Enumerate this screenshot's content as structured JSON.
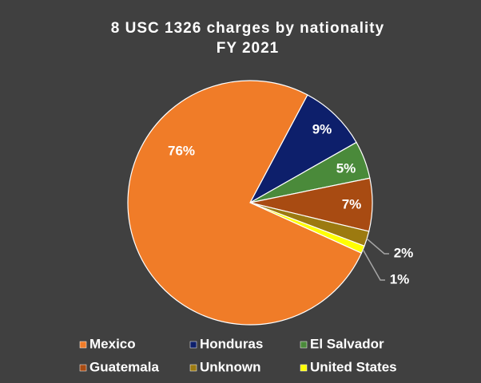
{
  "chart_data": {
    "type": "pie",
    "title": "8 USC 1326 charges by nationality",
    "subtitle": "FY 2021",
    "categories": [
      "Honduras",
      "El Salvador",
      "Guatemala",
      "Unknown",
      "United States",
      "Mexico"
    ],
    "values": [
      9,
      5,
      7,
      2,
      1,
      76
    ],
    "value_labels": [
      "9%",
      "5%",
      "7%",
      "2%",
      "1%",
      "76%"
    ],
    "colors": [
      "#0d1f6b",
      "#4a8a3a",
      "#a84b12",
      "#9c7a10",
      "#ffff00",
      "#f07c28"
    ],
    "legend_order": [
      5,
      0,
      1,
      2,
      3,
      4
    ]
  }
}
